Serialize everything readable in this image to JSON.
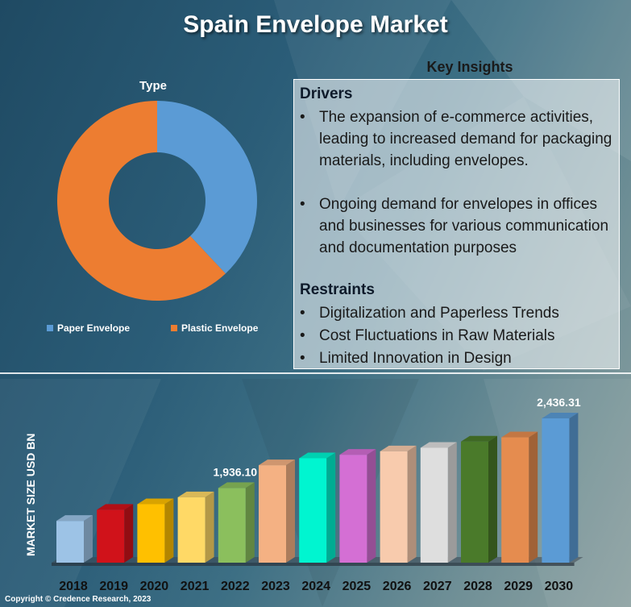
{
  "title": "Spain Envelope Market",
  "colors": {
    "paper": "#5b9bd5",
    "plastic": "#ed7d31"
  },
  "chart_data": [
    {
      "type": "pie",
      "title": "Type",
      "categories": [
        "Paper Envelope",
        "Plastic Envelope"
      ],
      "values": [
        38,
        62
      ],
      "colors": [
        "#5b9bd5",
        "#ed7d31"
      ],
      "donut": true,
      "legend": "bottom"
    },
    {
      "type": "bar",
      "title": "",
      "ylabel": "MARKET SIZE USD BN",
      "xlabel": "",
      "categories": [
        "2018",
        "2019",
        "2020",
        "2021",
        "2022",
        "2023",
        "2024",
        "2025",
        "2026",
        "2027",
        "2028",
        "2029",
        "2030"
      ],
      "values": [
        1700,
        1780,
        1820,
        1870,
        1936.1,
        2100,
        2150,
        2175,
        2200,
        2225,
        2270,
        2300,
        2436.31
      ],
      "data_labels": {
        "4": "1,936.10",
        "12": "2,436.31"
      },
      "colors": [
        "#9dc3e6",
        "#d0121a",
        "#ffc000",
        "#ffd966",
        "#8bbf5d",
        "#f4b183",
        "#00f5d0",
        "#d46fd4",
        "#f8cbad",
        "#dedede",
        "#4a7a2a",
        "#e58c4f",
        "#5b9bd5"
      ],
      "ylim": [
        1400,
        2500
      ],
      "grid": false,
      "style": "3d"
    }
  ],
  "insights": {
    "title": "Key Insights",
    "drivers_label": "Drivers",
    "drivers": [
      "The expansion of e-commerce activities, leading to increased demand for packaging materials, including envelopes.",
      "Ongoing demand for envelopes in offices and businesses for various communication and documentation purposes"
    ],
    "restraints_label": "Restraints",
    "restraints": [
      "Digitalization and Paperless Trends",
      "Cost Fluctuations in Raw Materials",
      "Limited Innovation in Design"
    ]
  },
  "copyright": "Copyright © Credence Research, 2023"
}
